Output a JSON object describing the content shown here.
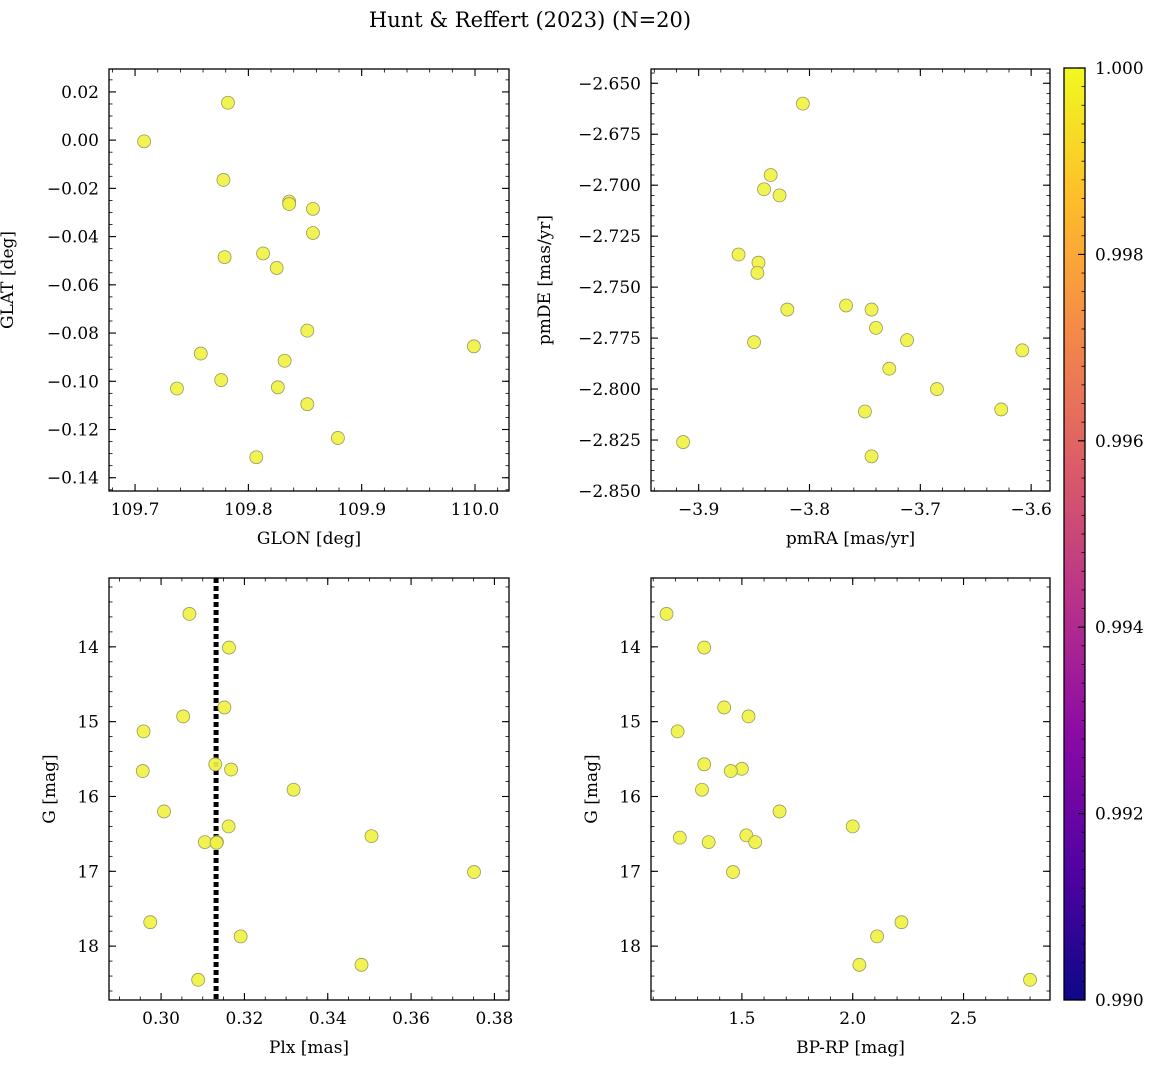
{
  "figure": {
    "title": "Hunt & Reffert (2023) (N=20)"
  },
  "colors": {
    "point": "#f0f244",
    "point_edge": "#9a9a60",
    "vline": "#000000"
  },
  "colorbar": {
    "min": 0.99,
    "max": 1.0,
    "ticks": [
      "0.990",
      "0.992",
      "0.994",
      "0.996",
      "0.998",
      "1.000"
    ],
    "tick_values": [
      0.99,
      0.992,
      0.994,
      0.996,
      0.998,
      1.0
    ],
    "colormap": [
      "#0d0887",
      "#5302a3",
      "#8b0aa5",
      "#b83289",
      "#db5c68",
      "#f48849",
      "#febd2a",
      "#f0f921"
    ]
  },
  "chart_data": [
    {
      "type": "scatter",
      "id": "glon-glat",
      "xlabel": "GLON [deg]",
      "ylabel": "GLAT [deg]",
      "xlim": [
        109.677,
        110.03
      ],
      "ylim": [
        -0.1455,
        0.0295
      ],
      "xticks": [
        109.7,
        109.8,
        109.9,
        110.0
      ],
      "xticklabels": [
        "109.7",
        "109.8",
        "109.9",
        "110.0"
      ],
      "xminor": 0.02,
      "yticks": [
        -0.14,
        -0.12,
        -0.1,
        -0.08,
        -0.06,
        -0.04,
        -0.02,
        0.0,
        0.02
      ],
      "yticklabels": [
        "−0.14",
        "−0.12",
        "−0.10",
        "−0.08",
        "−0.06",
        "−0.04",
        "−0.02",
        "0.00",
        "0.02"
      ],
      "yminor": 0.005,
      "x": [
        109.708,
        109.782,
        109.778,
        109.836,
        109.836,
        109.857,
        109.857,
        109.813,
        109.779,
        109.825,
        109.852,
        109.758,
        109.832,
        109.999,
        109.737,
        109.776,
        109.826,
        109.852,
        109.879,
        109.807
      ],
      "y": [
        -0.0005,
        0.0155,
        -0.0165,
        -0.0255,
        -0.0265,
        -0.0285,
        -0.0385,
        -0.047,
        -0.0485,
        -0.053,
        -0.079,
        -0.0885,
        -0.0915,
        -0.0855,
        -0.103,
        -0.0995,
        -0.1025,
        -0.1095,
        -0.1235,
        -0.1315
      ]
    },
    {
      "type": "scatter",
      "id": "pmra-pmde",
      "xlabel": "pmRA [mas/yr]",
      "ylabel": "pmDE [mas/yr]",
      "xlim": [
        -3.943,
        -3.583
      ],
      "ylim": [
        -2.85,
        -2.643
      ],
      "xticks": [
        -3.9,
        -3.8,
        -3.7,
        -3.6
      ],
      "xticklabels": [
        "−3.9",
        "−3.8",
        "−3.7",
        "−3.6"
      ],
      "xminor": 0.02,
      "yticks": [
        -2.85,
        -2.825,
        -2.8,
        -2.775,
        -2.75,
        -2.725,
        -2.7,
        -2.675,
        -2.65
      ],
      "yticklabels": [
        "−2.850",
        "−2.825",
        "−2.800",
        "−2.775",
        "−2.750",
        "−2.725",
        "−2.700",
        "−2.675",
        "−2.650"
      ],
      "yminor": 0.005,
      "x": [
        -3.806,
        -3.835,
        -3.841,
        -3.827,
        -3.864,
        -3.846,
        -3.847,
        -3.767,
        -3.744,
        -3.82,
        -3.74,
        -3.85,
        -3.712,
        -3.608,
        -3.728,
        -3.685,
        -3.627,
        -3.75,
        -3.914,
        -3.744
      ],
      "y": [
        -2.66,
        -2.695,
        -2.702,
        -2.705,
        -2.734,
        -2.738,
        -2.743,
        -2.759,
        -2.761,
        -2.761,
        -2.77,
        -2.777,
        -2.776,
        -2.781,
        -2.79,
        -2.8,
        -2.81,
        -2.811,
        -2.826,
        -2.833
      ]
    },
    {
      "type": "scatter",
      "id": "plx-g",
      "xlabel": "Plx [mas]",
      "ylabel": "G [mag]",
      "xlim": [
        0.2875,
        0.3835
      ],
      "ylim": [
        18.72,
        13.08
      ],
      "xticks": [
        0.3,
        0.32,
        0.34,
        0.36,
        0.38
      ],
      "xticklabels": [
        "0.30",
        "0.32",
        "0.34",
        "0.36",
        "0.38"
      ],
      "xminor": 0.005,
      "yticks": [
        14,
        15,
        16,
        17,
        18
      ],
      "yticklabels": [
        "14",
        "15",
        "16",
        "17",
        "18"
      ],
      "yminor": 0.2,
      "vline": 0.3132,
      "x": [
        0.3068,
        0.3163,
        0.3152,
        0.3053,
        0.2958,
        0.313,
        0.3168,
        0.2956,
        0.3318,
        0.3007,
        0.3162,
        0.3105,
        0.3134,
        0.3505,
        0.3751,
        0.2974,
        0.3191,
        0.3481,
        0.3089,
        0.3133
      ],
      "y": [
        13.56,
        14.01,
        14.81,
        14.93,
        15.13,
        15.57,
        15.64,
        15.66,
        15.91,
        16.2,
        16.4,
        16.61,
        16.61,
        16.53,
        17.01,
        17.68,
        17.87,
        18.25,
        18.45,
        16.62
      ]
    },
    {
      "type": "scatter",
      "id": "bprp-g",
      "xlabel": "BP-RP [mag]",
      "ylabel": "G [mag]",
      "xlim": [
        1.09,
        2.89
      ],
      "ylim": [
        18.72,
        13.08
      ],
      "xticks": [
        1.5,
        2.0,
        2.5
      ],
      "xticklabels": [
        "1.5",
        "2.0",
        "2.5"
      ],
      "xminor": 0.1,
      "yticks": [
        14,
        15,
        16,
        17,
        18
      ],
      "yticklabels": [
        "14",
        "15",
        "16",
        "17",
        "18"
      ],
      "yminor": 0.2,
      "x": [
        1.16,
        1.33,
        1.42,
        1.53,
        1.21,
        1.33,
        1.5,
        1.45,
        1.32,
        1.67,
        2.0,
        1.22,
        1.35,
        1.52,
        1.56,
        1.46,
        2.22,
        2.11,
        2.03,
        2.8
      ],
      "y": [
        13.56,
        14.01,
        14.81,
        14.93,
        15.13,
        15.57,
        15.63,
        15.66,
        15.91,
        16.2,
        16.4,
        16.55,
        16.61,
        16.52,
        16.61,
        17.01,
        17.68,
        17.87,
        18.25,
        18.45
      ]
    }
  ]
}
